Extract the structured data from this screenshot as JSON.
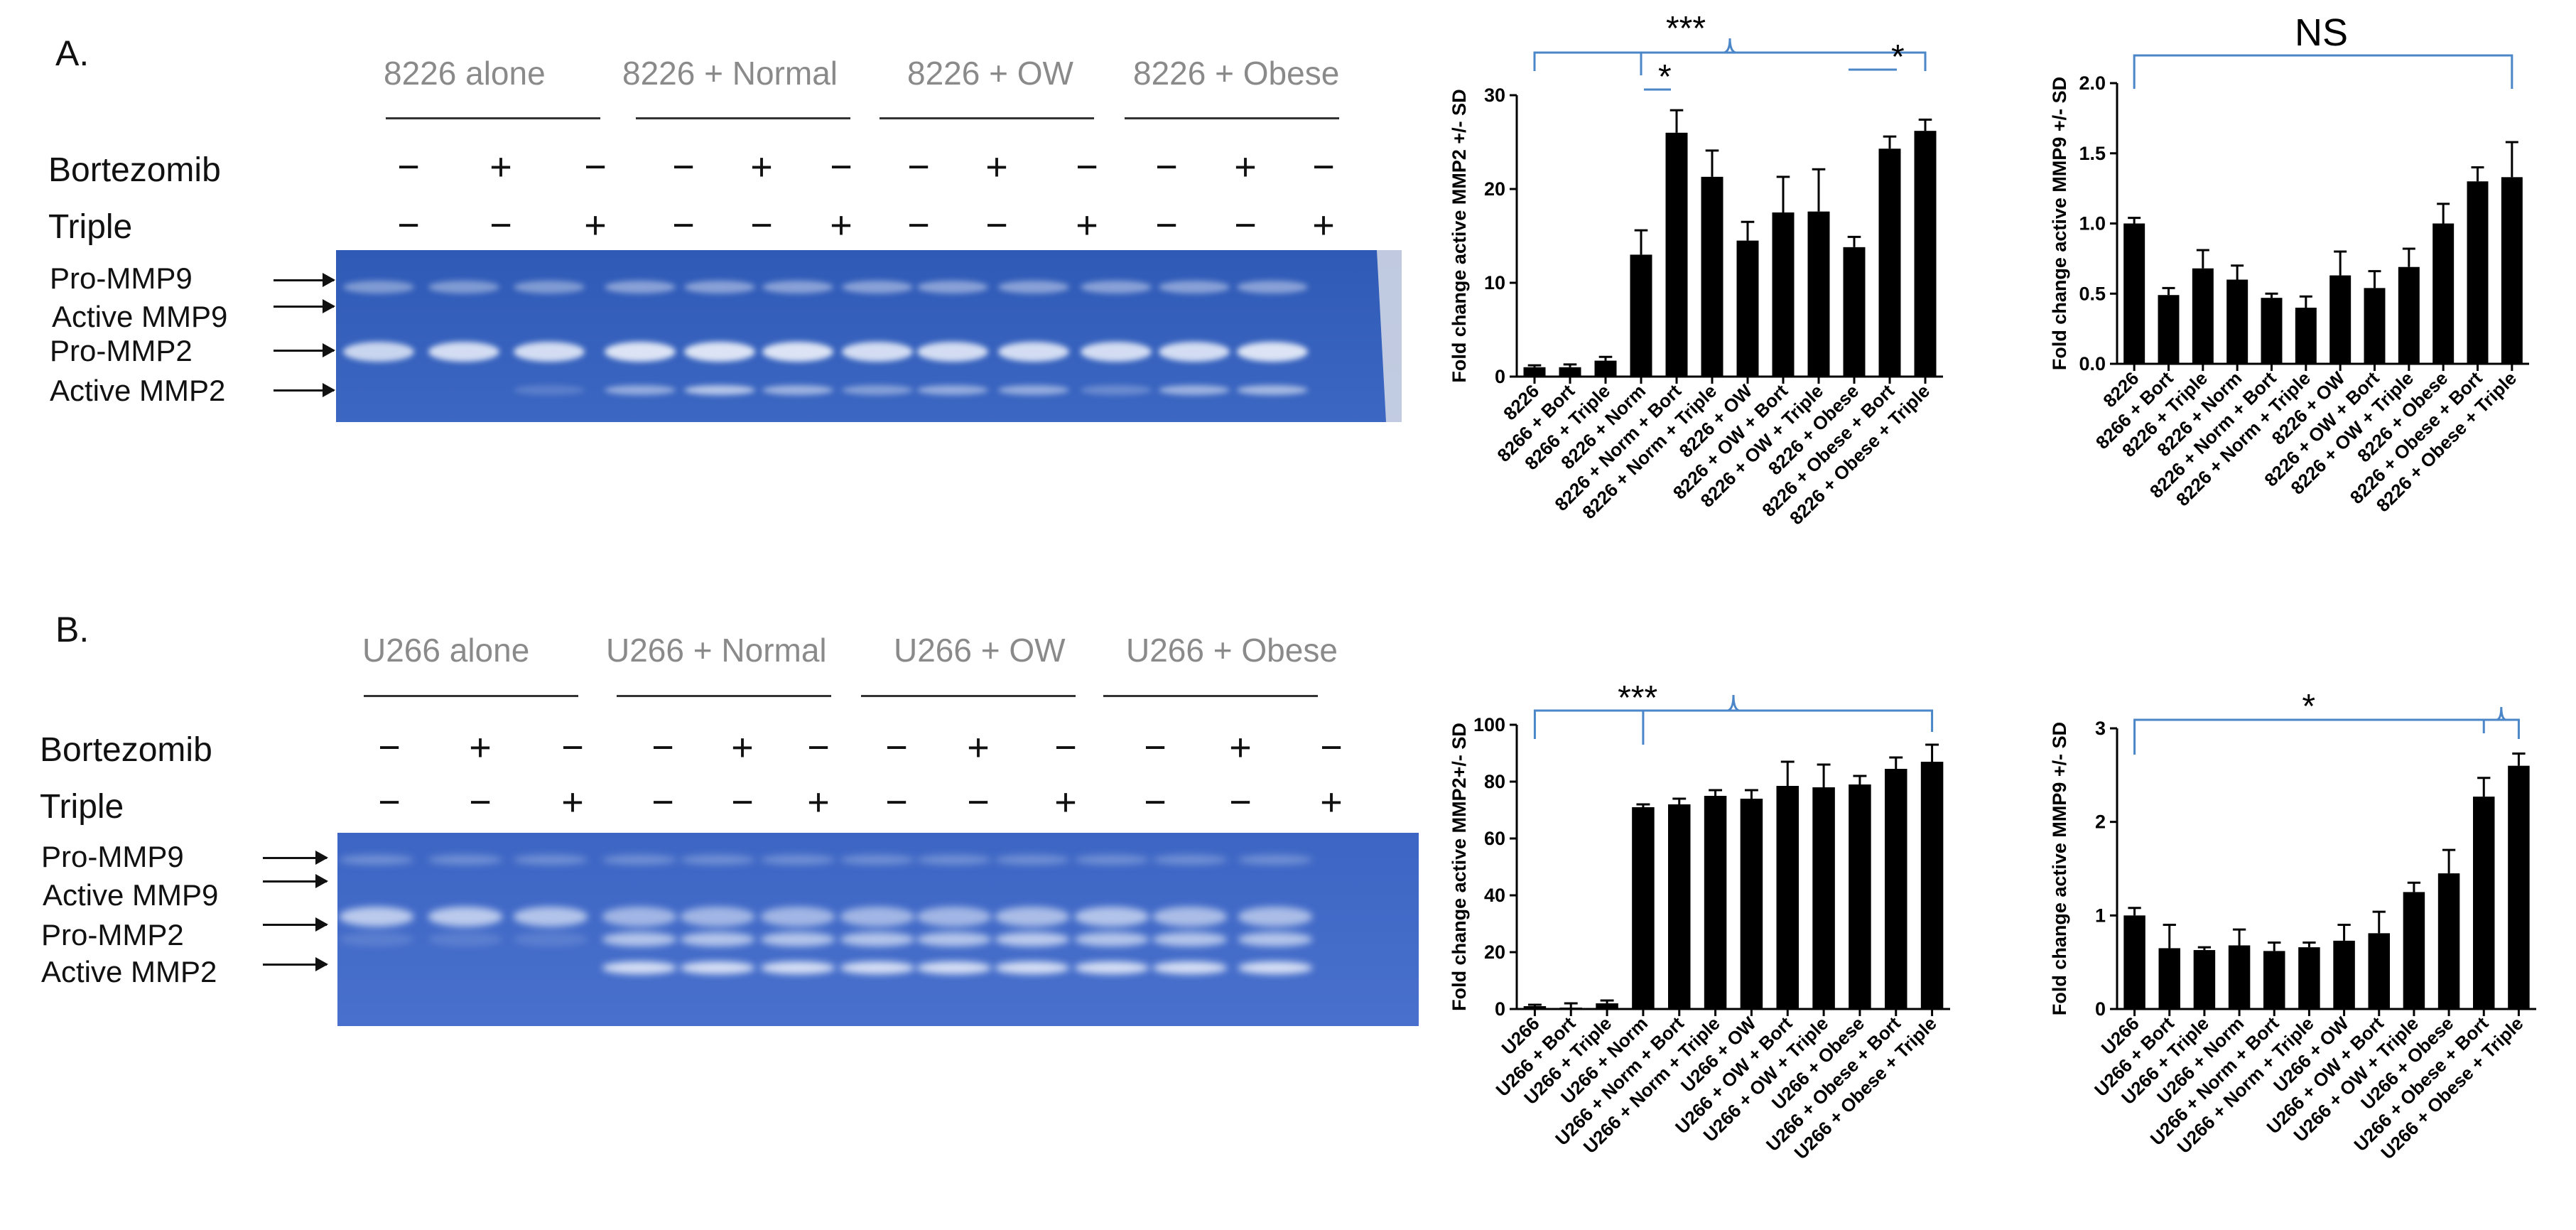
{
  "colors": {
    "gel": "#3f64bd",
    "bar": "#000000",
    "bracket": "#4a86c8",
    "group_label": "#8a8a8a"
  },
  "panels": [
    {
      "letter": "A.",
      "groups": [
        "8226 alone",
        "8226 + Normal",
        "8226 + OW",
        "8226 + Obese"
      ],
      "row_labels": [
        "Bortezomib",
        "Triple"
      ],
      "bortezomib_signs": [
        "−",
        "+",
        "−",
        "−",
        "+",
        "−",
        "−",
        "+",
        "−",
        "−",
        "+",
        "−"
      ],
      "triple_signs": [
        "−",
        "−",
        "+",
        "−",
        "−",
        "+",
        "−",
        "−",
        "+",
        "−",
        "−",
        "+"
      ],
      "band_labels": [
        "Pro-MMP9",
        "Active MMP9",
        "Pro-MMP2",
        "Active MMP2"
      ]
    },
    {
      "letter": "B.",
      "groups": [
        "U266 alone",
        "U266 + Normal",
        "U266 + OW",
        "U266 + Obese"
      ],
      "row_labels": [
        "Bortezomib",
        "Triple"
      ],
      "bortezomib_signs": [
        "−",
        "+",
        "−",
        "−",
        "+",
        "−",
        "−",
        "+",
        "−",
        "−",
        "+",
        "−"
      ],
      "triple_signs": [
        "−",
        "−",
        "+",
        "−",
        "−",
        "+",
        "−",
        "−",
        "+",
        "−",
        "−",
        "+"
      ],
      "band_labels": [
        "Pro-MMP9",
        "Active MMP9",
        "Pro-MMP2",
        "Active MMP2"
      ]
    }
  ],
  "chart_data": [
    {
      "type": "bar",
      "ylabel": "Fold change active MMP2 +/- SD",
      "categories": [
        "8226",
        "8266 + Bort",
        "8266 + Triple",
        "8226 + Norm",
        "8226 + Norm + Bort",
        "8226 + Norm + Triple",
        "8226 + OW",
        "8226 + OW + Bort",
        "8226 + OW + Triple",
        "8226 + Obese",
        "8226 + Obese + Bort",
        "8226 + Obese + Triple"
      ],
      "values": [
        1,
        1,
        1.7,
        13,
        26,
        21.3,
        14.5,
        17.5,
        17.6,
        13.8,
        24.3,
        26.2
      ],
      "errors": [
        0.2,
        0.3,
        0.4,
        2.6,
        2.4,
        2.8,
        2.0,
        3.8,
        4.5,
        1.1,
        1.3,
        1.2
      ],
      "ylim": [
        0,
        30
      ],
      "yticks": [
        "0",
        "10",
        "20",
        "30"
      ],
      "annotations": [
        "***",
        "*",
        "*"
      ]
    },
    {
      "type": "bar",
      "ylabel": "Fold change active MMP9 +/- SD",
      "categories": [
        "8226",
        "8266 + Bort",
        "8226 + Triple",
        "8226 + Norm",
        "8226 + Norm + Bort",
        "8226 + Norm + Triple",
        "8226 + OW",
        "8226 + OW + Bort",
        "8226 + OW + Triple",
        "8226 + Obese",
        "8226 + Obese + Bort",
        "8226 + Obese + Triple"
      ],
      "values": [
        1.0,
        0.49,
        0.68,
        0.6,
        0.47,
        0.4,
        0.63,
        0.54,
        0.69,
        1.0,
        1.3,
        1.33
      ],
      "errors": [
        0.04,
        0.05,
        0.13,
        0.1,
        0.03,
        0.08,
        0.17,
        0.12,
        0.13,
        0.14,
        0.1,
        0.25
      ],
      "ylim": [
        0,
        2.0
      ],
      "yticks": [
        "0.0",
        "0.5",
        "1.0",
        "1.5",
        "2.0"
      ],
      "annotations": [
        "NS"
      ]
    },
    {
      "type": "bar",
      "ylabel": "Fold change active MMP2+/- SD",
      "categories": [
        "U266",
        "U266 + Bort",
        "U266 + Triple",
        "U266 + Norm",
        "U266 + Norm + Bort",
        "U266 + Norm + Triple",
        "U266 + OW",
        "U266 + OW + Bort",
        "U266 + OW + Triple",
        "U266 + Obese",
        "U266 + Obese + Bort",
        "U266 + Obese + Triple"
      ],
      "values": [
        1,
        0.5,
        2,
        71,
        72,
        75,
        74,
        78.5,
        78,
        79,
        84.5,
        87
      ],
      "errors": [
        0.5,
        1.5,
        1,
        1,
        2,
        2,
        3,
        8.5,
        8,
        3,
        4,
        6
      ],
      "ylim": [
        0,
        100
      ],
      "yticks": [
        "0",
        "20",
        "40",
        "60",
        "80",
        "100"
      ],
      "annotations": [
        "***"
      ]
    },
    {
      "type": "bar",
      "ylabel": "Fold change active MMP9 +/- SD",
      "categories": [
        "U266",
        "U266 + Bort",
        "U266 + Triple",
        "U266 + Norm",
        "U266 + Norm + Bort",
        "U266 + Norm + Triple",
        "U266 + OW",
        "U266 + OW + Bort",
        "U266 + OW + Triple",
        "U266 + Obese",
        "U266 + Obese + Bort",
        "U266 + Obese + Triple"
      ],
      "values": [
        1.0,
        0.65,
        0.63,
        0.68,
        0.62,
        0.66,
        0.73,
        0.81,
        1.25,
        1.45,
        2.27,
        2.6
      ],
      "errors": [
        0.08,
        0.25,
        0.03,
        0.17,
        0.09,
        0.05,
        0.17,
        0.23,
        0.1,
        0.25,
        0.2,
        0.13
      ],
      "ylim": [
        0,
        3
      ],
      "yticks": [
        "0",
        "1",
        "2",
        "3"
      ],
      "annotations": [
        "*"
      ]
    }
  ]
}
